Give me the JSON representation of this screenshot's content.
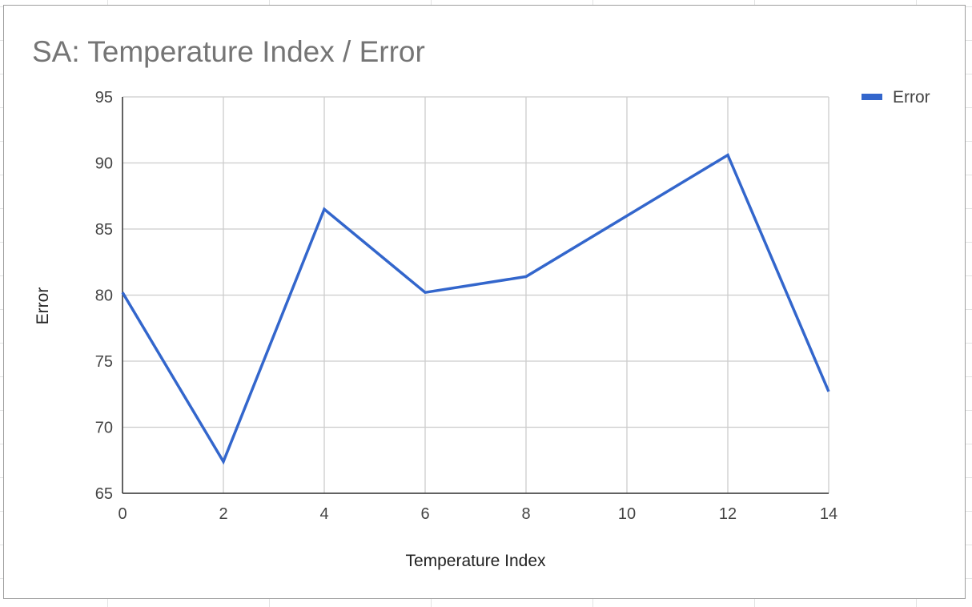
{
  "chart_data": {
    "type": "line",
    "title": "SA: Temperature Index / Error",
    "xlabel": "Temperature Index",
    "ylabel": "Error",
    "xlim": [
      0,
      14
    ],
    "ylim": [
      65,
      95
    ],
    "x_ticks": [
      0,
      2,
      4,
      6,
      8,
      10,
      12,
      14
    ],
    "y_ticks": [
      65,
      70,
      75,
      80,
      85,
      90,
      95
    ],
    "grid": true,
    "legend_position": "top-right",
    "series": [
      {
        "name": "Error",
        "color": "#3366cc",
        "x": [
          0,
          2,
          4,
          6,
          8,
          12,
          14
        ],
        "y": [
          80.2,
          67.4,
          86.5,
          80.2,
          81.4,
          90.6,
          72.7
        ]
      }
    ]
  }
}
